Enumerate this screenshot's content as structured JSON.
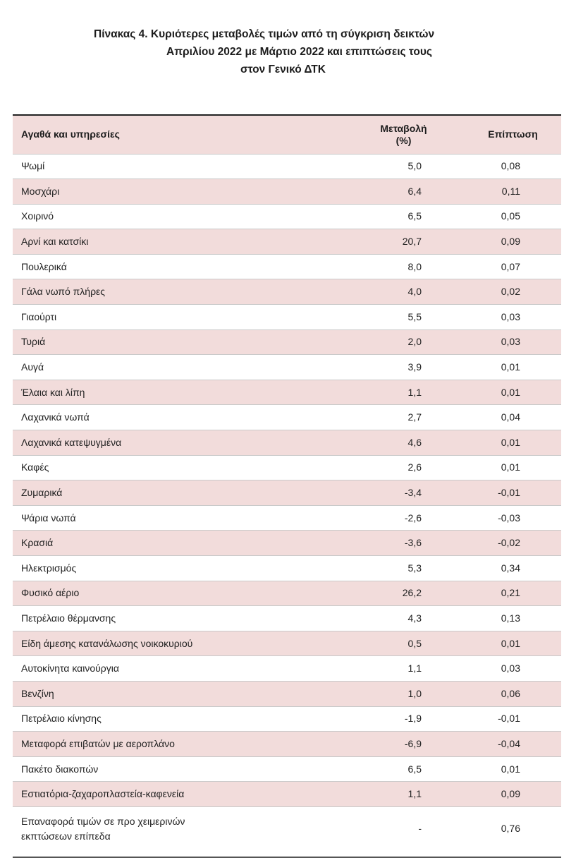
{
  "title": {
    "line1": "Πίνακας  4. Κυριότερες μεταβολές τιμών από τη σύγκριση δεικτών",
    "line2": "Απριλίου 2022 με Μάρτιο 2022 και επιπτώσεις τους",
    "line3": "στον Γενικό ΔΤΚ"
  },
  "table": {
    "headers": {
      "item": "Αγαθά και υπηρεσίες",
      "change_line1": "Μεταβολή",
      "change_line2": "(%)",
      "impact": "Επίπτωση"
    },
    "rows": [
      {
        "name": "Ψωμί",
        "change": "5,0",
        "impact": "0,08"
      },
      {
        "name": "Μοσχάρι",
        "change": "6,4",
        "impact": "0,11"
      },
      {
        "name": "Χοιρινό",
        "change": "6,5",
        "impact": "0,05"
      },
      {
        "name": "Αρνί και κατσίκι",
        "change": "20,7",
        "impact": "0,09"
      },
      {
        "name": "Πουλερικά",
        "change": "8,0",
        "impact": "0,07"
      },
      {
        "name": "Γάλα νωπό πλήρες",
        "change": "4,0",
        "impact": "0,02"
      },
      {
        "name": "Γιαούρτι",
        "change": "5,5",
        "impact": "0,03"
      },
      {
        "name": "Τυριά",
        "change": "2,0",
        "impact": "0,03"
      },
      {
        "name": "Αυγά",
        "change": "3,9",
        "impact": "0,01"
      },
      {
        "name": "Έλαια και λίπη",
        "change": "1,1",
        "impact": "0,01"
      },
      {
        "name": "Λαχανικά νωπά",
        "change": "2,7",
        "impact": "0,04"
      },
      {
        "name": "Λαχανικά κατεψυγμένα",
        "change": "4,6",
        "impact": "0,01"
      },
      {
        "name": "Καφές",
        "change": "2,6",
        "impact": "0,01"
      },
      {
        "name": "Ζυμαρικά",
        "change": "-3,4",
        "impact": "-0,01"
      },
      {
        "name": "Ψάρια νωπά",
        "change": "-2,6",
        "impact": "-0,03"
      },
      {
        "name": "Κρασιά",
        "change": "-3,6",
        "impact": "-0,02"
      },
      {
        "name": "Ηλεκτρισμός",
        "change": "5,3",
        "impact": "0,34"
      },
      {
        "name": "Φυσικό αέριο",
        "change": "26,2",
        "impact": "0,21"
      },
      {
        "name": "Πετρέλαιο θέρμανσης",
        "change": "4,3",
        "impact": "0,13"
      },
      {
        "name": "Είδη άμεσης κατανάλωσης νοικοκυριού",
        "change": "0,5",
        "impact": "0,01"
      },
      {
        "name": "Αυτοκίνητα καινούργια",
        "change": "1,1",
        "impact": "0,03"
      },
      {
        "name": "Βενζίνη",
        "change": "1,0",
        "impact": "0,06"
      },
      {
        "name": "Πετρέλαιο κίνησης",
        "change": "-1,9",
        "impact": "-0,01"
      },
      {
        "name": "Μεταφορά επιβατών με αεροπλάνο",
        "change": "-6,9",
        "impact": "-0,04"
      },
      {
        "name": "Πακέτο διακοπών",
        "change": "6,5",
        "impact": "0,01"
      },
      {
        "name": "Εστιατόρια-ζαχαροπλαστεία-καφενεία",
        "change": "1,1",
        "impact": "0,09"
      }
    ],
    "last_row": {
      "name_line1": "Επαναφορά τιμών σε προ χειμερινών",
      "name_line2": "εκπτώσεων επίπεδα",
      "change": "-",
      "impact": "0,76"
    }
  }
}
